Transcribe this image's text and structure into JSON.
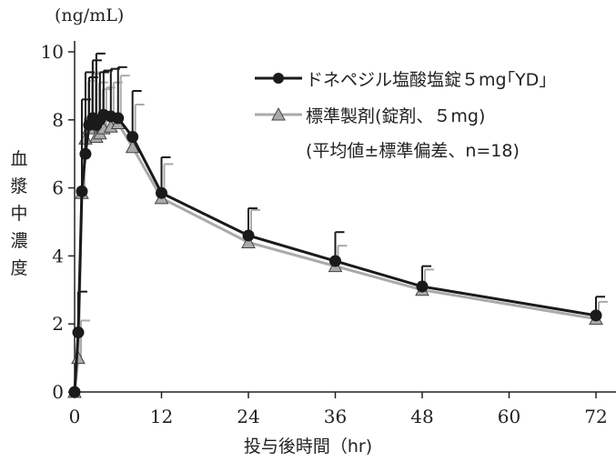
{
  "chart_data": {
    "type": "line",
    "unit_label": "(ng/mL)",
    "ylabel": "血漿中濃度",
    "xlabel": "投与後時間（hr)",
    "xlim": [
      0,
      72
    ],
    "ylim": [
      0,
      10
    ],
    "x_ticks": [
      0,
      12,
      24,
      36,
      48,
      60,
      72
    ],
    "y_ticks": [
      0,
      2,
      4,
      6,
      8,
      10
    ],
    "x_tick_labels": [
      "0",
      "12",
      "24",
      "36",
      "48",
      "60",
      "72"
    ],
    "y_tick_labels": [
      "0",
      "2",
      "4",
      "6",
      "8",
      "10"
    ],
    "legend_note": "(平均値±標準偏差、n=18)",
    "legend_position": "top-right",
    "series": [
      {
        "name": "ドネペジル塩酸塩錠５mg｢YD｣",
        "color": "#1a1a1a",
        "marker": "circle",
        "x": [
          0,
          0.5,
          1,
          1.5,
          2,
          2.5,
          3,
          3.5,
          4,
          5,
          6,
          8,
          12,
          24,
          36,
          48,
          72
        ],
        "y": [
          0,
          1.75,
          5.9,
          7.0,
          7.85,
          8.05,
          7.85,
          8.0,
          8.15,
          8.1,
          8.05,
          7.5,
          5.85,
          4.6,
          3.85,
          3.1,
          2.25
        ],
        "err": [
          0,
          1.2,
          2.7,
          2.4,
          1.4,
          1.7,
          2.1,
          1.4,
          1.3,
          1.4,
          1.5,
          1.35,
          1.05,
          0.8,
          0.85,
          0.6,
          0.55
        ]
      },
      {
        "name": "標準製剤(錠剤、５mg)",
        "color": "#aaaaaa",
        "marker": "triangle",
        "x": [
          0,
          0.5,
          1,
          1.5,
          2,
          2.5,
          3,
          3.5,
          4,
          5,
          6,
          8,
          12,
          24,
          36,
          48,
          72
        ],
        "y": [
          0,
          1.0,
          5.85,
          7.45,
          7.75,
          7.9,
          7.5,
          7.6,
          7.75,
          7.8,
          7.9,
          7.2,
          5.7,
          4.4,
          3.7,
          3.0,
          2.15
        ],
        "err": [
          0,
          1.1,
          2.2,
          1.7,
          1.6,
          1.5,
          1.6,
          1.3,
          1.2,
          1.3,
          1.4,
          1.25,
          1.0,
          0.95,
          0.6,
          0.6,
          0.5
        ]
      }
    ]
  }
}
